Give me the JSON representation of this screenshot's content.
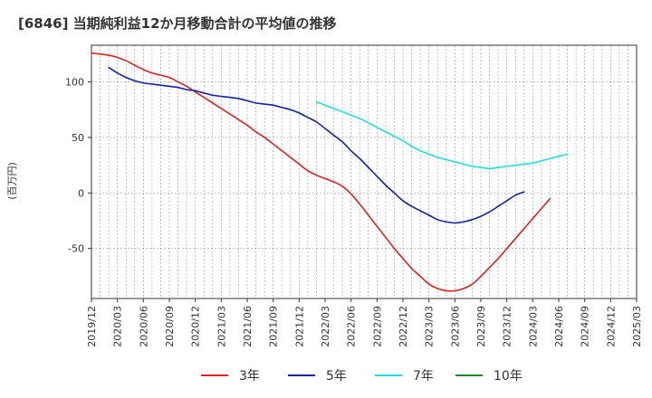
{
  "chart_data": {
    "type": "line",
    "title": "[6846]  当期純利益12か月移動合計の平均値の推移",
    "ylabel": "(百万円)",
    "xlabel": "",
    "ylim": [
      -95,
      133
    ],
    "yticks": [
      100,
      50,
      0,
      -50
    ],
    "x_ticks": [
      "2019/12",
      "2020/03",
      "2020/06",
      "2020/09",
      "2020/12",
      "2021/03",
      "2021/06",
      "2021/09",
      "2021/12",
      "2022/03",
      "2022/06",
      "2022/09",
      "2022/12",
      "2023/03",
      "2023/06",
      "2023/09",
      "2023/12",
      "2024/03",
      "2024/06",
      "2024/09",
      "2024/12",
      "2025/03"
    ],
    "grid": true,
    "legend_position": "bottom",
    "series": [
      {
        "name": "3年",
        "color": "#dd2222",
        "start": "2019/12",
        "values": [
          126,
          125,
          124,
          122,
          119,
          115,
          111,
          108,
          106,
          104,
          100,
          96,
          91,
          86,
          81,
          76,
          71,
          66,
          61,
          55,
          50,
          44,
          38,
          32,
          26,
          20,
          16,
          13,
          10,
          6,
          -1,
          -10,
          -20,
          -30,
          -40,
          -50,
          -59,
          -68,
          -75,
          -82,
          -86,
          -88,
          -88,
          -86,
          -82,
          -75,
          -67,
          -59,
          -50,
          -41,
          -32,
          -23,
          -14,
          -5
        ]
      },
      {
        "name": "5年",
        "color": "#1122aa",
        "start": "2020/02",
        "values": [
          113,
          108,
          104,
          101,
          99,
          98,
          97,
          96,
          95,
          93,
          92,
          90,
          88,
          87,
          86,
          85,
          83,
          81,
          80,
          79,
          77,
          75,
          72,
          68,
          64,
          58,
          52,
          46,
          38,
          31,
          23,
          15,
          7,
          0,
          -7,
          -12,
          -16,
          -20,
          -24,
          -26,
          -27,
          -26,
          -24,
          -21,
          -17,
          -12,
          -7,
          -2,
          1
        ]
      },
      {
        "name": "7年",
        "color": "#22dddd",
        "start": "2022/02",
        "values": [
          82,
          79,
          76,
          73,
          70,
          67,
          63,
          59,
          55,
          51,
          47,
          42,
          38,
          35,
          32,
          30,
          28,
          26,
          24,
          23,
          22,
          23,
          24,
          25,
          26,
          27,
          29,
          31,
          33,
          35
        ]
      },
      {
        "name": "10年",
        "color": "#228822",
        "start": "2019/12",
        "values": []
      }
    ]
  }
}
